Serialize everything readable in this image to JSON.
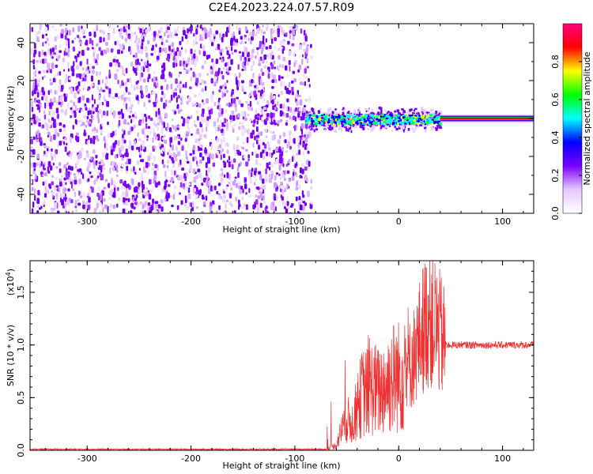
{
  "figure_title": "C2E4.2023.224.07.57.R09",
  "chart_data": [
    {
      "type": "heatmap",
      "title": "C2E4.2023.224.07.57.R09",
      "xlabel": "Height of straight line (km)",
      "ylabel": "Frequency (Hz)",
      "xlim": [
        -355,
        130
      ],
      "ylim": [
        -50,
        50
      ],
      "x_ticks": [
        -300,
        -200,
        -100,
        0,
        100
      ],
      "y_ticks": [
        -40,
        -20,
        0,
        20,
        40
      ],
      "noise_region_x": [
        -355,
        -85
      ],
      "signal_region_x": [
        -90,
        130
      ],
      "carrier_frequency": 0,
      "colorbar": {
        "label": "Normalized spectral amplitude",
        "range": [
          0.0,
          1.0
        ],
        "ticks": [
          0.0,
          0.2,
          0.4,
          0.6,
          0.8
        ],
        "colormap": [
          "#ffffff",
          "#e8c8ff",
          "#7a00ff",
          "#0000ff",
          "#00ffff",
          "#00ff00",
          "#ffff00",
          "#ff0000",
          "#ff0080"
        ]
      }
    },
    {
      "type": "line",
      "xlabel": "Height of straight line (km)",
      "ylabel": "SNR (10 * v/v)",
      "exponent_label": "(x10",
      "exponent_power": "4",
      "exponent_close": ")",
      "xlim": [
        -355,
        130
      ],
      "ylim": [
        0,
        1.8
      ],
      "x_ticks": [
        -300,
        -200,
        -100,
        0,
        100
      ],
      "y_ticks": [
        0.0,
        0.5,
        1.0,
        1.5
      ],
      "y_tick_labels": [
        "0.0",
        "0.5",
        "1.0",
        "1.5"
      ],
      "color": "#ee3333",
      "series": [
        {
          "x": [
            -355,
            -250,
            -150,
            -100,
            -70,
            -60,
            -55,
            -50,
            -45,
            -40,
            -35,
            -30,
            -25,
            -20,
            -15,
            -10,
            -5,
            0,
            5,
            10,
            15,
            20,
            25,
            30,
            35,
            40,
            45,
            50,
            60,
            80,
            100,
            130
          ],
          "values": [
            0.0,
            0.0,
            0.0,
            0.0,
            0.01,
            0.05,
            0.2,
            0.3,
            0.25,
            0.4,
            0.55,
            0.55,
            0.6,
            0.55,
            0.6,
            0.65,
            0.7,
            0.7,
            0.75,
            0.8,
            0.9,
            1.05,
            1.2,
            1.3,
            1.2,
            1.1,
            1.0,
            1.0,
            1.0,
            1.0,
            1.0,
            1.0
          ]
        }
      ]
    }
  ]
}
